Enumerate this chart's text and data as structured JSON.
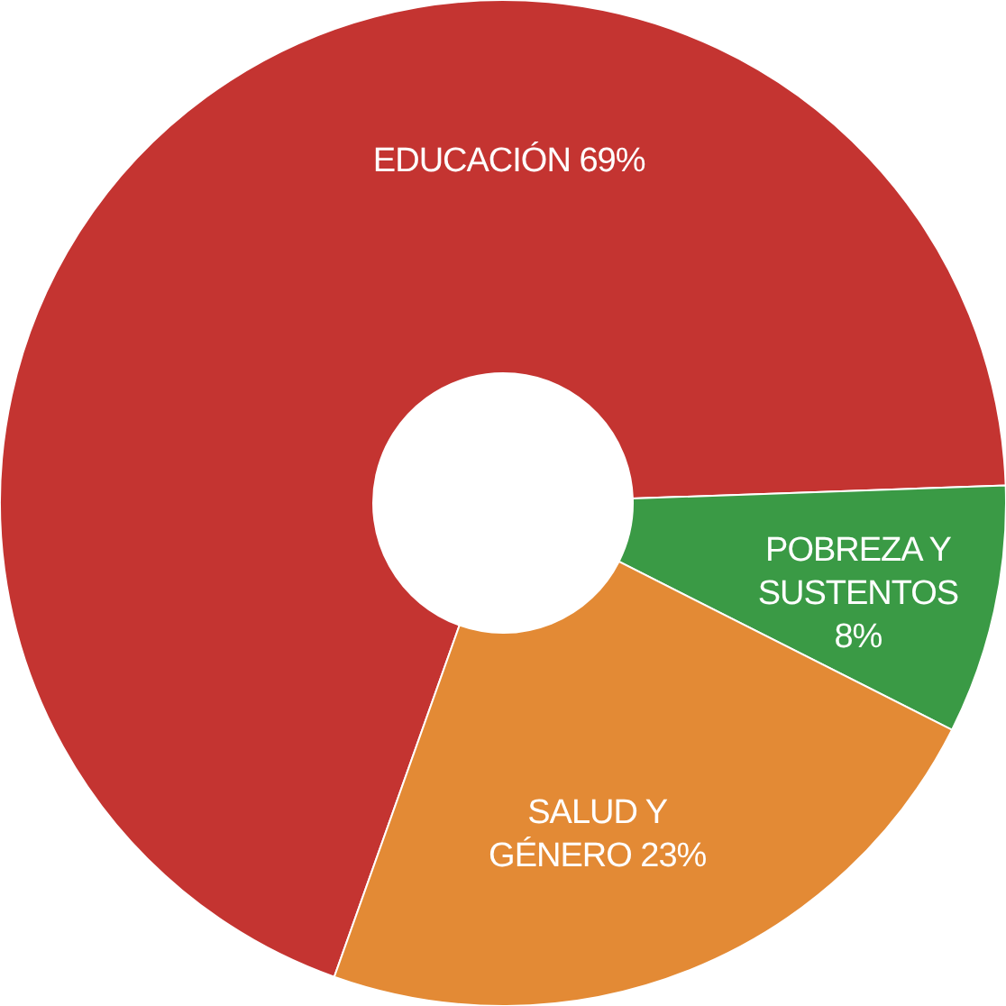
{
  "chart_data": {
    "type": "donut",
    "categories": [
      "EDUCACIÓN",
      "POBREZA Y SUSTENTOS",
      "SALUD Y GÉNERO"
    ],
    "values": [
      69,
      8,
      23
    ],
    "colors": [
      "#c43431",
      "#3a9a45",
      "#e38a35"
    ],
    "value_labels": [
      "69%",
      "8%",
      "23%"
    ]
  }
}
